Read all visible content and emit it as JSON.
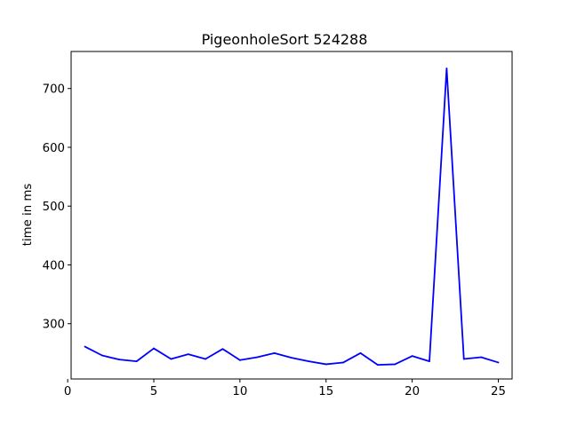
{
  "chart_data": {
    "type": "line",
    "title": "PigeonholeSort 524288",
    "xlabel": "",
    "ylabel": "time in ms",
    "xlim": [
      0.2,
      25.8
    ],
    "ylim": [
      206,
      763
    ],
    "xticks": [
      0,
      5,
      10,
      15,
      20,
      25
    ],
    "yticks": [
      300,
      400,
      500,
      600,
      700
    ],
    "grid": false,
    "series": [
      {
        "color": "#0000ff",
        "x": [
          1,
          2,
          3,
          4,
          5,
          6,
          7,
          8,
          9,
          10,
          11,
          12,
          13,
          14,
          15,
          16,
          17,
          18,
          19,
          20,
          21,
          22,
          23,
          24,
          25
        ],
        "y": [
          261,
          246,
          239,
          236,
          258,
          240,
          248,
          240,
          257,
          238,
          243,
          250,
          242,
          236,
          231,
          234,
          250,
          230,
          231,
          245,
          236,
          734,
          240,
          243,
          234
        ]
      }
    ]
  }
}
